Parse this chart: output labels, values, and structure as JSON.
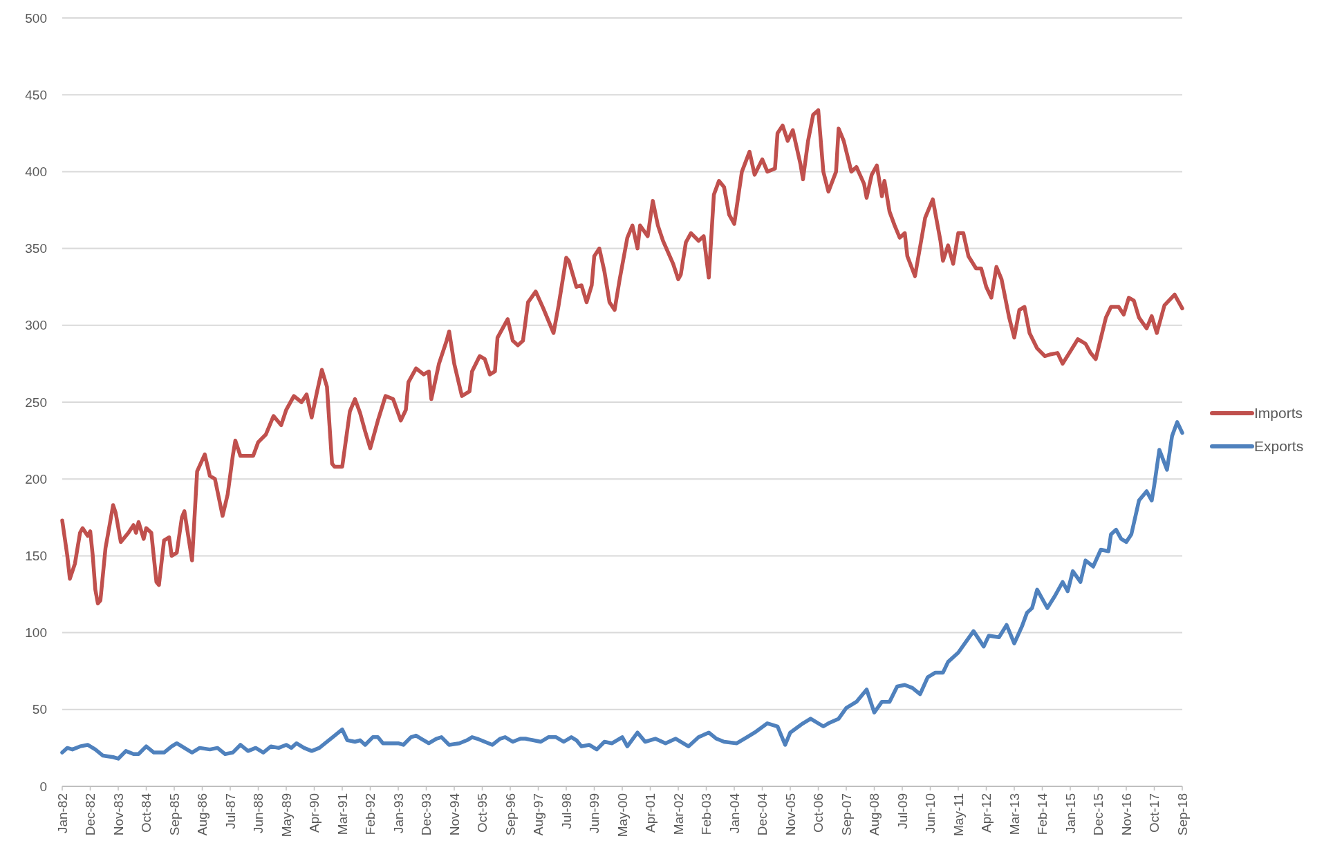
{
  "chart_data": {
    "type": "line",
    "xlim": [
      "1982-01",
      "2018-09"
    ],
    "ylim": [
      0,
      500
    ],
    "yticks": [
      0,
      50,
      100,
      150,
      200,
      250,
      300,
      350,
      400,
      450,
      500
    ],
    "xticks": [
      {
        "value": "1982-01",
        "label": "Jan-82"
      },
      {
        "value": "1982-12",
        "label": "Dec-82"
      },
      {
        "value": "1983-11",
        "label": "Nov-83"
      },
      {
        "value": "1984-10",
        "label": "Oct-84"
      },
      {
        "value": "1985-09",
        "label": "Sep-85"
      },
      {
        "value": "1986-08",
        "label": "Aug-86"
      },
      {
        "value": "1987-07",
        "label": "Jul-87"
      },
      {
        "value": "1988-06",
        "label": "Jun-88"
      },
      {
        "value": "1989-05",
        "label": "May-89"
      },
      {
        "value": "1990-04",
        "label": "Apr-90"
      },
      {
        "value": "1991-03",
        "label": "Mar-91"
      },
      {
        "value": "1992-02",
        "label": "Feb-92"
      },
      {
        "value": "1993-01",
        "label": "Jan-93"
      },
      {
        "value": "1993-12",
        "label": "Dec-93"
      },
      {
        "value": "1994-11",
        "label": "Nov-94"
      },
      {
        "value": "1995-10",
        "label": "Oct-95"
      },
      {
        "value": "1996-09",
        "label": "Sep-96"
      },
      {
        "value": "1997-08",
        "label": "Aug-97"
      },
      {
        "value": "1998-07",
        "label": "Jul-98"
      },
      {
        "value": "1999-06",
        "label": "Jun-99"
      },
      {
        "value": "2000-05",
        "label": "May-00"
      },
      {
        "value": "2001-04",
        "label": "Apr-01"
      },
      {
        "value": "2002-03",
        "label": "Mar-02"
      },
      {
        "value": "2003-02",
        "label": "Feb-03"
      },
      {
        "value": "2004-01",
        "label": "Jan-04"
      },
      {
        "value": "2004-12",
        "label": "Dec-04"
      },
      {
        "value": "2005-11",
        "label": "Nov-05"
      },
      {
        "value": "2006-10",
        "label": "Oct-06"
      },
      {
        "value": "2007-09",
        "label": "Sep-07"
      },
      {
        "value": "2008-08",
        "label": "Aug-08"
      },
      {
        "value": "2009-07",
        "label": "Jul-09"
      },
      {
        "value": "2010-06",
        "label": "Jun-10"
      },
      {
        "value": "2011-05",
        "label": "May-11"
      },
      {
        "value": "2012-04",
        "label": "Apr-12"
      },
      {
        "value": "2013-03",
        "label": "Mar-13"
      },
      {
        "value": "2014-02",
        "label": "Feb-14"
      },
      {
        "value": "2015-01",
        "label": "Jan-15"
      },
      {
        "value": "2015-12",
        "label": "Dec-15"
      },
      {
        "value": "2016-11",
        "label": "Nov-16"
      },
      {
        "value": "2017-10",
        "label": "Oct-17"
      },
      {
        "value": "2018-09",
        "label": "Sep-18"
      }
    ],
    "grid": "y",
    "legend": "right",
    "marker": "none",
    "line_style": "solid",
    "series": [
      {
        "name": "Imports",
        "color": "#c0504d",
        "x": [
          "1982-01",
          "1982-03",
          "1982-04",
          "1982-06",
          "1982-08",
          "1982-09",
          "1982-11",
          "1982-12",
          "1983-01",
          "1983-02",
          "1983-03",
          "1983-04",
          "1983-06",
          "1983-09",
          "1983-10",
          "1983-12",
          "1984-03",
          "1984-05",
          "1984-06",
          "1984-07",
          "1984-09",
          "1984-10",
          "1984-12",
          "1985-02",
          "1985-03",
          "1985-05",
          "1985-07",
          "1985-08",
          "1985-10",
          "1985-12",
          "1986-01",
          "1986-04",
          "1986-06",
          "1986-09",
          "1986-11",
          "1987-01",
          "1987-04",
          "1987-06",
          "1987-08",
          "1987-09",
          "1987-11",
          "1988-03",
          "1988-04",
          "1988-06",
          "1988-09",
          "1988-12",
          "1989-03",
          "1989-05",
          "1989-08",
          "1989-11",
          "1990-01",
          "1990-03",
          "1990-05",
          "1990-07",
          "1990-09",
          "1990-11",
          "1990-12",
          "1991-03",
          "1991-06",
          "1991-08",
          "1991-10",
          "1991-12",
          "1992-02",
          "1992-05",
          "1992-08",
          "1992-11",
          "1993-02",
          "1993-04",
          "1993-05",
          "1993-08",
          "1993-11",
          "1994-01",
          "1994-02",
          "1994-05",
          "1994-08",
          "1994-09",
          "1994-11",
          "1995-02",
          "1995-05",
          "1995-06",
          "1995-09",
          "1995-11",
          "1996-01",
          "1996-03",
          "1996-04",
          "1996-08",
          "1996-10",
          "1996-12",
          "1997-02",
          "1997-04",
          "1997-07",
          "1997-10",
          "1998-02",
          "1998-04",
          "1998-07",
          "1998-08",
          "1998-11",
          "1999-01",
          "1999-03",
          "1999-05",
          "1999-06",
          "1999-08",
          "1999-10",
          "1999-12",
          "2000-02",
          "2000-04",
          "2000-07",
          "2000-09",
          "2000-11",
          "2000-12",
          "2001-03",
          "2001-05",
          "2001-07",
          "2001-09",
          "2002-01",
          "2002-03",
          "2002-04",
          "2002-06",
          "2002-08",
          "2002-11",
          "2003-01",
          "2003-03",
          "2003-05",
          "2003-07",
          "2003-09",
          "2003-11",
          "2004-01",
          "2004-04",
          "2004-07",
          "2004-09",
          "2004-12",
          "2005-02",
          "2005-05",
          "2005-06",
          "2005-08",
          "2005-10",
          "2005-12",
          "2006-03",
          "2006-04",
          "2006-06",
          "2006-08",
          "2006-10",
          "2006-12",
          "2007-02",
          "2007-05",
          "2007-06",
          "2007-08",
          "2007-11",
          "2008-01",
          "2008-04",
          "2008-05",
          "2008-07",
          "2008-09",
          "2008-11",
          "2008-12",
          "2009-02",
          "2009-04",
          "2009-06",
          "2009-08",
          "2009-09",
          "2009-12",
          "2010-04",
          "2010-07",
          "2010-10",
          "2010-11",
          "2011-01",
          "2011-03",
          "2011-05",
          "2011-07",
          "2011-09",
          "2011-12",
          "2012-02",
          "2012-04",
          "2012-06",
          "2012-08",
          "2012-10",
          "2013-01",
          "2013-03",
          "2013-05",
          "2013-07",
          "2013-09",
          "2013-12",
          "2014-03",
          "2014-05",
          "2014-08",
          "2014-10",
          "2015-01",
          "2015-04",
          "2015-07",
          "2015-09",
          "2015-11",
          "2016-03",
          "2016-05",
          "2016-08",
          "2016-10",
          "2016-12",
          "2017-02",
          "2017-04",
          "2017-07",
          "2017-09",
          "2017-11",
          "2018-02",
          "2018-06",
          "2018-09"
        ],
        "values": [
          173,
          150,
          135,
          145,
          165,
          168,
          163,
          166,
          150,
          128,
          119,
          121,
          155,
          183,
          178,
          159,
          165,
          170,
          165,
          172,
          161,
          168,
          165,
          133,
          131,
          160,
          162,
          150,
          152,
          175,
          179,
          147,
          205,
          216,
          202,
          200,
          176,
          190,
          215,
          225,
          215,
          215,
          215,
          224,
          229,
          241,
          235,
          245,
          254,
          250,
          255,
          240,
          256,
          271,
          260,
          210,
          208,
          208,
          244,
          252,
          243,
          231,
          220,
          238,
          254,
          252,
          238,
          245,
          263,
          272,
          268,
          270,
          252,
          275,
          290,
          296,
          275,
          254,
          257,
          270,
          280,
          278,
          268,
          270,
          292,
          304,
          290,
          287,
          290,
          315,
          322,
          311,
          295,
          313,
          344,
          342,
          325,
          326,
          315,
          326,
          345,
          350,
          335,
          315,
          310,
          330,
          357,
          365,
          350,
          365,
          358,
          381,
          365,
          355,
          340,
          330,
          333,
          354,
          360,
          355,
          358,
          331,
          385,
          394,
          390,
          372,
          366,
          400,
          413,
          398,
          408,
          400,
          402,
          425,
          430,
          420,
          427,
          405,
          395,
          420,
          437,
          440,
          400,
          387,
          400,
          428,
          420,
          400,
          403,
          392,
          383,
          398,
          404,
          384,
          394,
          374,
          365,
          357,
          360,
          345,
          332,
          370,
          382,
          355,
          342,
          352,
          340,
          360,
          360,
          345,
          337,
          337,
          325,
          318,
          338,
          330,
          305,
          292,
          310,
          312,
          295,
          285,
          280,
          281,
          282,
          275,
          283,
          291,
          288,
          282,
          278,
          305,
          312,
          312,
          307,
          318,
          316,
          305,
          298,
          306,
          295,
          313,
          320,
          311
        ]
      },
      {
        "name": "Exports",
        "color": "#4f81bd",
        "x": [
          "1982-01",
          "1982-03",
          "1982-05",
          "1982-08",
          "1982-11",
          "1983-02",
          "1983-05",
          "1983-09",
          "1983-11",
          "1984-02",
          "1984-05",
          "1984-07",
          "1984-10",
          "1985-01",
          "1985-05",
          "1985-08",
          "1985-10",
          "1986-01",
          "1986-04",
          "1986-07",
          "1986-11",
          "1987-02",
          "1987-05",
          "1987-08",
          "1987-11",
          "1988-02",
          "1988-05",
          "1988-08",
          "1988-11",
          "1989-02",
          "1989-05",
          "1989-07",
          "1989-09",
          "1989-12",
          "1990-03",
          "1990-06",
          "1990-12",
          "1991-03",
          "1991-05",
          "1991-08",
          "1991-10",
          "1991-12",
          "1992-03",
          "1992-05",
          "1992-07",
          "1992-10",
          "1993-01",
          "1993-03",
          "1993-06",
          "1993-08",
          "1993-10",
          "1994-01",
          "1994-04",
          "1994-06",
          "1994-09",
          "1995-01",
          "1995-04",
          "1995-06",
          "1995-08",
          "1995-11",
          "1996-02",
          "1996-05",
          "1996-07",
          "1996-10",
          "1997-01",
          "1997-03",
          "1997-06",
          "1997-09",
          "1997-12",
          "1998-03",
          "1998-06",
          "1998-09",
          "1998-11",
          "1999-01",
          "1999-04",
          "1999-07",
          "1999-10",
          "2000-01",
          "2000-05",
          "2000-07",
          "2000-11",
          "2001-02",
          "2001-06",
          "2001-10",
          "2002-02",
          "2002-07",
          "2002-11",
          "2003-03",
          "2003-06",
          "2003-09",
          "2004-02",
          "2004-06",
          "2004-09",
          "2005-02",
          "2005-06",
          "2005-09",
          "2005-11",
          "2006-04",
          "2006-07",
          "2006-12",
          "2007-02",
          "2007-06",
          "2007-09",
          "2008-01",
          "2008-05",
          "2008-08",
          "2008-11",
          "2009-02",
          "2009-05",
          "2009-08",
          "2009-11",
          "2010-02",
          "2010-05",
          "2010-08",
          "2010-11",
          "2011-01",
          "2011-05",
          "2011-08",
          "2011-11",
          "2012-03",
          "2012-05",
          "2012-09",
          "2012-12",
          "2013-03",
          "2013-06",
          "2013-08",
          "2013-10",
          "2013-12",
          "2014-04",
          "2014-07",
          "2014-10",
          "2014-12",
          "2015-02",
          "2015-05",
          "2015-07",
          "2015-10",
          "2016-01",
          "2016-04",
          "2016-05",
          "2016-07",
          "2016-09",
          "2016-11",
          "2017-01",
          "2017-04",
          "2017-07",
          "2017-09",
          "2017-10",
          "2017-12",
          "2018-03",
          "2018-05",
          "2018-07",
          "2018-09"
        ],
        "values": [
          22,
          25,
          24,
          26,
          27,
          24,
          20,
          19,
          18,
          23,
          21,
          21,
          26,
          22,
          22,
          26,
          28,
          25,
          22,
          25,
          24,
          25,
          21,
          22,
          27,
          23,
          25,
          22,
          26,
          25,
          27,
          25,
          28,
          25,
          23,
          25,
          33,
          37,
          30,
          29,
          30,
          27,
          32,
          32,
          28,
          28,
          28,
          27,
          32,
          33,
          31,
          28,
          31,
          32,
          27,
          28,
          30,
          32,
          31,
          29,
          27,
          31,
          32,
          29,
          31,
          31,
          30,
          29,
          32,
          32,
          29,
          32,
          30,
          26,
          27,
          24,
          29,
          28,
          32,
          26,
          35,
          29,
          31,
          28,
          31,
          26,
          32,
          35,
          31,
          29,
          28,
          32,
          35,
          41,
          39,
          27,
          35,
          41,
          44,
          39,
          41,
          44,
          51,
          55,
          63,
          48,
          55,
          55,
          65,
          66,
          64,
          60,
          71,
          74,
          74,
          81,
          87,
          94,
          101,
          91,
          98,
          97,
          105,
          93,
          104,
          113,
          116,
          128,
          116,
          124,
          133,
          127,
          140,
          133,
          147,
          143,
          154,
          153,
          164,
          167,
          161,
          159,
          164,
          186,
          192,
          186,
          196,
          219,
          206,
          228,
          237,
          230
        ]
      }
    ]
  }
}
